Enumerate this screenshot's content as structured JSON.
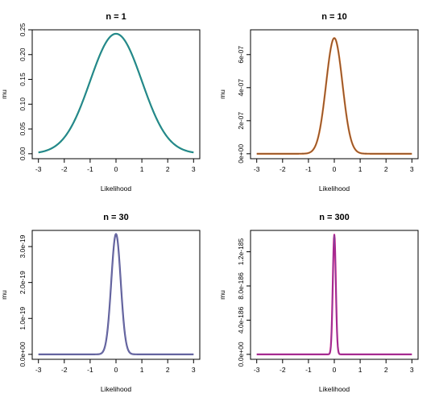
{
  "chart_data": [
    {
      "type": "line",
      "title": "n = 1",
      "xlabel": "Likelihood",
      "ylabel": "mu",
      "xlim": [
        -3,
        3
      ],
      "ylim": [
        0,
        0.25
      ],
      "x_ticks": [
        "-3",
        "-2",
        "-1",
        "0",
        "1",
        "2",
        "3"
      ],
      "y_ticks": [
        "0.00",
        "0.05",
        "0.10",
        "0.15",
        "0.20",
        "0.25"
      ],
      "y_tick_values": [
        0,
        0.05,
        0.1,
        0.15,
        0.2,
        0.25
      ],
      "peak": 0.242,
      "sd": 1.0,
      "series": [
        {
          "x_range": [
            -3,
            3
          ],
          "shape": "gaussian",
          "center": 0,
          "color": "#1a9a6c",
          "inner_color": "#3a5fcd"
        }
      ]
    },
    {
      "type": "line",
      "title": "n = 10",
      "xlabel": "Likelihood",
      "ylabel": "mu",
      "xlim": [
        -3,
        3
      ],
      "ylim": [
        0,
        7.5e-07
      ],
      "x_ticks": [
        "-3",
        "-2",
        "-1",
        "0",
        "1",
        "2",
        "3"
      ],
      "y_ticks": [
        "0e+00",
        "2e-07",
        "4e-07",
        "6e-07"
      ],
      "y_tick_values": [
        0,
        2e-07,
        4e-07,
        6e-07
      ],
      "peak": 7e-07,
      "sd": 0.316,
      "series": [
        {
          "x_range": [
            -3,
            3
          ],
          "shape": "gaussian",
          "center": 0,
          "color": "#d2691e",
          "inner_color": "#4a4a4a"
        }
      ]
    },
    {
      "type": "line",
      "title": "n = 30",
      "xlabel": "Likelihood",
      "ylabel": "mu",
      "xlim": [
        -3,
        3
      ],
      "ylim": [
        0,
        3.45e-19
      ],
      "x_ticks": [
        "-3",
        "-2",
        "-1",
        "0",
        "1",
        "2",
        "3"
      ],
      "y_ticks": [
        "0.0e+00",
        "1.0e-19",
        "2.0e-19",
        "3.0e-19"
      ],
      "y_tick_values": [
        0,
        1e-19,
        2e-19,
        3e-19
      ],
      "peak": 3.35e-19,
      "sd": 0.183,
      "series": [
        {
          "x_range": [
            -3,
            3
          ],
          "shape": "gaussian",
          "center": 0,
          "color": "#5a5a9a",
          "inner_color": "#7a7aaa"
        }
      ]
    },
    {
      "type": "line",
      "title": "n = 300",
      "xlabel": "Likelihood",
      "ylabel": "mu",
      "xlim": [
        -3,
        3
      ],
      "ylim": [
        0,
        1.45e-185
      ],
      "x_ticks": [
        "-3",
        "-2",
        "-1",
        "0",
        "1",
        "2",
        "3"
      ],
      "y_ticks": [
        "0.0e+00",
        "4.0e-186",
        "8.0e-186",
        "1.2e-185"
      ],
      "y_tick_values": [
        0,
        4e-186,
        8e-186,
        1.2e-185
      ],
      "peak": 1.4e-185,
      "sd": 0.058,
      "series": [
        {
          "x_range": [
            -3,
            3
          ],
          "shape": "gaussian",
          "center": 0,
          "color": "#c71585",
          "inner_color": "#5a5aaa"
        }
      ]
    }
  ]
}
